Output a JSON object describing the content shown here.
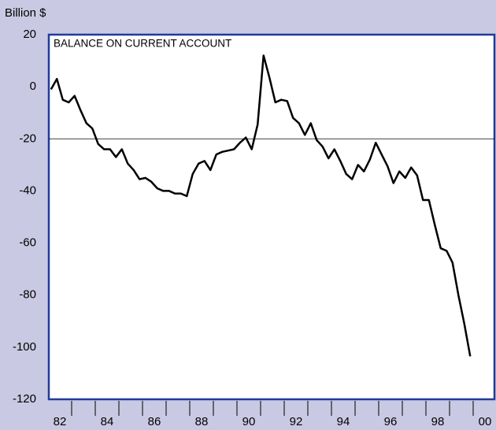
{
  "chart_data": {
    "type": "line",
    "title": "BALANCE ON CURRENT ACCOUNT",
    "ylabel": "Billion $",
    "x": [
      1982.125,
      1982.375,
      1982.625,
      1982.875,
      1983.125,
      1983.375,
      1983.625,
      1983.875,
      1984.125,
      1984.375,
      1984.625,
      1984.875,
      1985.125,
      1985.375,
      1985.625,
      1985.875,
      1986.125,
      1986.375,
      1986.625,
      1986.875,
      1987.125,
      1987.375,
      1987.625,
      1987.875,
      1988.125,
      1988.375,
      1988.625,
      1988.875,
      1989.125,
      1989.375,
      1989.625,
      1989.875,
      1990.125,
      1990.375,
      1990.625,
      1990.875,
      1991.125,
      1991.375,
      1991.625,
      1991.875,
      1992.125,
      1992.375,
      1992.625,
      1992.875,
      1993.125,
      1993.375,
      1993.625,
      1993.875,
      1994.125,
      1994.375,
      1994.625,
      1994.875,
      1995.125,
      1995.375,
      1995.625,
      1995.875,
      1996.125,
      1996.375,
      1996.625,
      1996.875,
      1997.125,
      1997.375,
      1997.625,
      1997.875,
      1998.125,
      1998.375,
      1998.625,
      1998.875,
      1999.125,
      1999.375,
      1999.625,
      1999.875
    ],
    "values": [
      -1,
      3,
      -5,
      -6,
      -3.5,
      -9,
      -14,
      -16,
      -22,
      -24,
      -24,
      -27,
      -24,
      -29.5,
      -32,
      -35.5,
      -35,
      -36.5,
      -39,
      -40,
      -40,
      -41,
      -41,
      -42,
      -33.5,
      -29.5,
      -28.5,
      -32,
      -26,
      -25,
      -24.5,
      -24,
      -21.5,
      -19.5,
      -24,
      -14.5,
      12,
      3.5,
      -6,
      -5,
      -5.5,
      -12,
      -14,
      -18.5,
      -14,
      -20.5,
      -23,
      -27.5,
      -24,
      -28.5,
      -33.5,
      -35.5,
      -30,
      -32.5,
      -28,
      -21.5,
      -26,
      -30.5,
      -37,
      -32.5,
      -35,
      -31,
      -34,
      -43.5,
      -43.5,
      -53,
      -62,
      -63,
      -67.5,
      -80,
      -91,
      -103.5
    ],
    "color": "#000000",
    "xlim": [
      1982,
      2000.9
    ],
    "ylim": [
      -120,
      20
    ],
    "yticks": [
      20,
      0,
      -20,
      -40,
      -60,
      -80,
      -100,
      -120
    ],
    "xticks": [
      {
        "value": 1982.5,
        "label": "82"
      },
      {
        "value": 1984.5,
        "label": "84"
      },
      {
        "value": 1986.5,
        "label": "86"
      },
      {
        "value": 1988.5,
        "label": "88"
      },
      {
        "value": 1990.5,
        "label": "90"
      },
      {
        "value": 1992.5,
        "label": "92"
      },
      {
        "value": 1994.5,
        "label": "94"
      },
      {
        "value": 1996.5,
        "label": "96"
      },
      {
        "value": 1998.5,
        "label": "98"
      },
      {
        "value": 2000.5,
        "label": "00"
      }
    ],
    "xtick_marks": [
      1983,
      1984,
      1985,
      1986,
      1987,
      1988,
      1989,
      1990,
      1991,
      1992,
      1993,
      1994,
      1995,
      1996,
      1997,
      1998,
      1999,
      2000
    ],
    "hline": -20
  }
}
